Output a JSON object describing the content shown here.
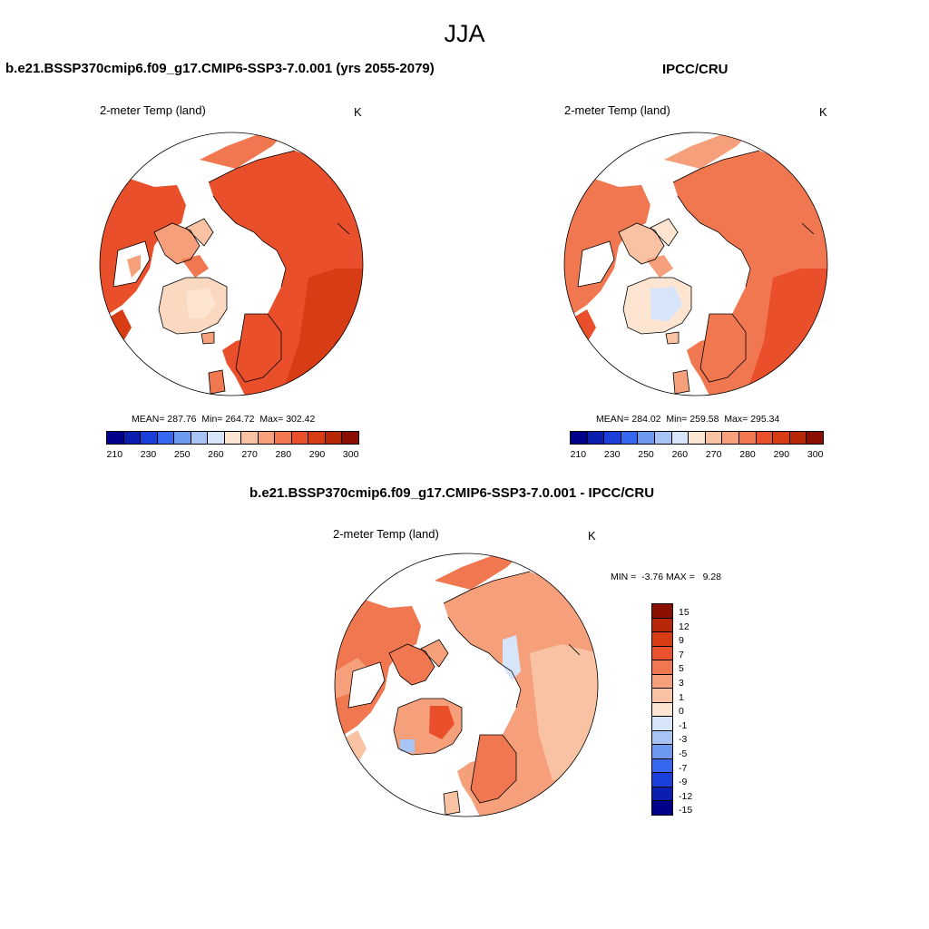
{
  "title": "JJA",
  "panels": [
    {
      "id": "model",
      "case_title": "b.e21.BSSP370cmip6.f09_g17.CMIP6-SSP3-7.0.001 (yrs 2055-2079)",
      "left_label": "2-meter Temp (land)",
      "right_label": "K",
      "stats": {
        "mean_label": "MEAN=",
        "mean": "287.76",
        "min_label": "Min=",
        "min": "264.72",
        "max_label": "Max=",
        "max": "302.42"
      }
    },
    {
      "id": "obs",
      "case_title": "IPCC/CRU",
      "left_label": "2-meter Temp (land)",
      "right_label": "K",
      "stats": {
        "mean_label": "MEAN=",
        "mean": "284.02",
        "min_label": "Min=",
        "min": "259.58",
        "max_label": "Max=",
        "max": "295.34"
      }
    },
    {
      "id": "diff",
      "case_title": "b.e21.BSSP370cmip6.f09_g17.CMIP6-SSP3-7.0.001 - IPCC/CRU",
      "left_label": "2-meter Temp (land)",
      "right_label": "K",
      "stats": {
        "min_label": "MIN =",
        "min": "-3.76",
        "max_label": "MAX =",
        "max": "9.28"
      }
    }
  ],
  "colorbar_abs": {
    "ticks": [
      "210",
      "230",
      "250",
      "260",
      "270",
      "280",
      "290",
      "300"
    ],
    "colors": [
      "#00008b",
      "#0a1fb0",
      "#1a3fdb",
      "#3567f0",
      "#6d9af0",
      "#a8c4f5",
      "#d7e5fb",
      "#fde5d2",
      "#f9c3a3",
      "#f5a07a",
      "#f07750",
      "#e9502c",
      "#d73c14",
      "#b82808",
      "#8b0f00"
    ]
  },
  "colorbar_diff": {
    "ticks": [
      "15",
      "12",
      "9",
      "7",
      "5",
      "3",
      "1",
      "0",
      "-1",
      "-3",
      "-5",
      "-7",
      "-9",
      "-12",
      "-15"
    ],
    "colors": [
      "#8b0f00",
      "#b82808",
      "#d73c14",
      "#e9502c",
      "#f07750",
      "#f5a07a",
      "#f9c3a3",
      "#fde5d2",
      "#d7e5fb",
      "#a8c4f5",
      "#6d9af0",
      "#3567f0",
      "#1a3fdb",
      "#0a1fb0",
      "#00008b"
    ]
  },
  "chart_data": {
    "type": "heatmap",
    "projection": "north-polar-stereographic",
    "season": "JJA",
    "variable": "2-meter Temp (land)",
    "units": "K",
    "maps": [
      {
        "name": "b.e21.BSSP370cmip6.f09_g17.CMIP6-SSP3-7.0.001 (yrs 2055-2079)",
        "mean": 287.76,
        "min": 264.72,
        "max": 302.42,
        "contour_levels": [
          210,
          220,
          230,
          240,
          250,
          255,
          260,
          265,
          270,
          275,
          280,
          285,
          290,
          295,
          300
        ]
      },
      {
        "name": "IPCC/CRU",
        "mean": 284.02,
        "min": 259.58,
        "max": 295.34,
        "contour_levels": [
          210,
          220,
          230,
          240,
          250,
          255,
          260,
          265,
          270,
          275,
          280,
          285,
          290,
          295,
          300
        ]
      },
      {
        "name": "b.e21.BSSP370cmip6.f09_g17.CMIP6-SSP3-7.0.001 - IPCC/CRU",
        "min": -3.76,
        "max": 9.28,
        "contour_levels": [
          -15,
          -12,
          -9,
          -7,
          -5,
          -3,
          -1,
          0,
          1,
          3,
          5,
          7,
          9,
          12,
          15
        ]
      }
    ]
  }
}
